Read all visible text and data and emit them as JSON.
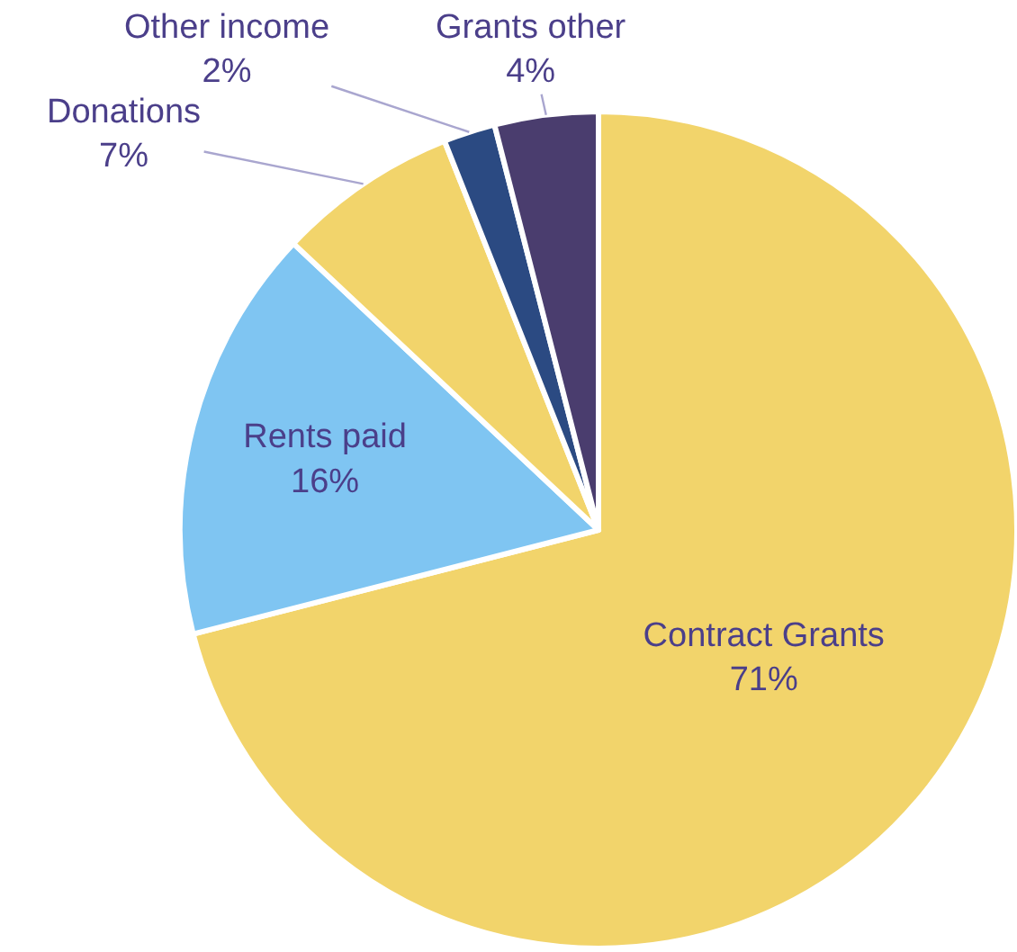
{
  "chart_data": {
    "type": "pie",
    "categories": [
      "Contract Grants",
      "Rents paid",
      "Donations",
      "Other income",
      "Grants other"
    ],
    "values": [
      71,
      16,
      7,
      2,
      4
    ],
    "value_labels": [
      "71%",
      "16%",
      "7%",
      "2%",
      "4%"
    ],
    "colors": [
      "#f2d46b",
      "#7fc5f2",
      "#f2d46b",
      "#2b4a82",
      "#4a3d6e"
    ],
    "legend": false
  }
}
